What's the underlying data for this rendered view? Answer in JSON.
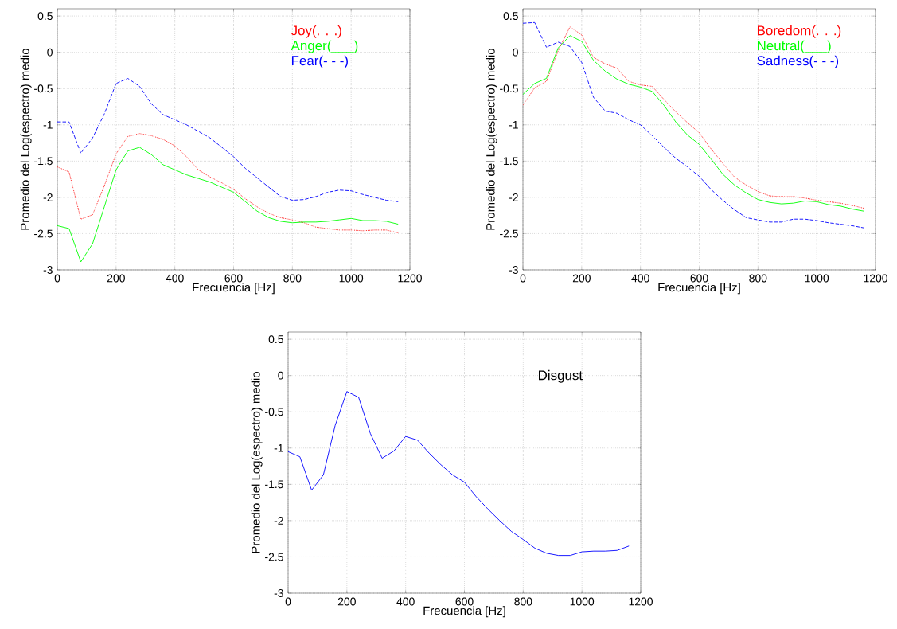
{
  "chart_data": [
    {
      "type": "line",
      "xlabel": "Frecuencia [Hz]",
      "ylabel": "Promedio del Log(espectro) medio",
      "grid": true,
      "legend": "top right",
      "x": [
        0,
        40,
        80,
        120,
        160,
        200,
        240,
        280,
        320,
        360,
        400,
        440,
        480,
        520,
        560,
        600,
        640,
        680,
        720,
        760,
        800,
        840,
        880,
        920,
        960,
        1000,
        1040,
        1080,
        1120,
        1160
      ],
      "xlim": [
        0,
        1200
      ],
      "xticks": [
        0,
        200,
        400,
        600,
        800,
        1000,
        1200
      ],
      "ylim": [
        -3,
        0.6
      ],
      "yticks": [
        -3,
        -2.5,
        -2,
        -1.5,
        -1,
        -0.5,
        0,
        0.5
      ],
      "series": [
        {
          "name": "Joy(. . .)",
          "color": "#ff0000",
          "line_style": "dotted",
          "values": [
            -1.58,
            -1.65,
            -2.3,
            -2.24,
            -1.84,
            -1.4,
            -1.16,
            -1.12,
            -1.15,
            -1.2,
            -1.29,
            -1.44,
            -1.62,
            -1.72,
            -1.8,
            -1.89,
            -2.02,
            -2.13,
            -2.22,
            -2.28,
            -2.31,
            -2.35,
            -2.41,
            -2.43,
            -2.45,
            -2.45,
            -2.46,
            -2.45,
            -2.45,
            -2.49
          ]
        },
        {
          "name": "Anger(___)",
          "color": "#00ff00",
          "line_style": "solid",
          "values": [
            -2.39,
            -2.43,
            -2.89,
            -2.64,
            -2.13,
            -1.62,
            -1.36,
            -1.31,
            -1.41,
            -1.55,
            -1.62,
            -1.69,
            -1.74,
            -1.79,
            -1.86,
            -1.93,
            -2.06,
            -2.19,
            -2.28,
            -2.33,
            -2.35,
            -2.34,
            -2.34,
            -2.33,
            -2.31,
            -2.29,
            -2.32,
            -2.32,
            -2.33,
            -2.37
          ]
        },
        {
          "name": "Fear(- - -)",
          "color": "#0000ff",
          "line_style": "dashed",
          "values": [
            -0.96,
            -0.96,
            -1.39,
            -1.18,
            -0.85,
            -0.43,
            -0.36,
            -0.47,
            -0.71,
            -0.86,
            -0.93,
            -1.0,
            -1.09,
            -1.18,
            -1.31,
            -1.44,
            -1.6,
            -1.73,
            -1.86,
            -1.99,
            -2.04,
            -2.03,
            -1.99,
            -1.93,
            -1.9,
            -1.91,
            -1.96,
            -2.0,
            -2.04,
            -2.06
          ]
        }
      ]
    },
    {
      "type": "line",
      "xlabel": "Frecuencia [Hz]",
      "ylabel": "Promedio del Log(espectro) medio",
      "grid": true,
      "legend": "top right",
      "x": [
        0,
        40,
        80,
        120,
        160,
        200,
        240,
        280,
        320,
        360,
        400,
        440,
        480,
        520,
        560,
        600,
        640,
        680,
        720,
        760,
        800,
        840,
        880,
        920,
        960,
        1000,
        1040,
        1080,
        1120,
        1160
      ],
      "xlim": [
        0,
        1200
      ],
      "xticks": [
        0,
        200,
        400,
        600,
        800,
        1000,
        1200
      ],
      "ylim": [
        -3,
        0.6
      ],
      "yticks": [
        -3,
        -2.5,
        -2,
        -1.5,
        -1,
        -0.5,
        0,
        0.5
      ],
      "series": [
        {
          "name": "Boredom(. . .)",
          "color": "#ff0000",
          "line_style": "dotted",
          "values": [
            -0.73,
            -0.49,
            -0.4,
            0.02,
            0.35,
            0.24,
            -0.07,
            -0.16,
            -0.22,
            -0.4,
            -0.45,
            -0.47,
            -0.65,
            -0.82,
            -0.97,
            -1.11,
            -1.33,
            -1.53,
            -1.72,
            -1.83,
            -1.92,
            -1.98,
            -1.99,
            -1.99,
            -2.01,
            -2.04,
            -2.06,
            -2.08,
            -2.11,
            -2.15
          ]
        },
        {
          "name": "Neutral(___)",
          "color": "#00ff00",
          "line_style": "solid",
          "values": [
            -0.58,
            -0.43,
            -0.36,
            0.06,
            0.23,
            0.15,
            -0.11,
            -0.26,
            -0.37,
            -0.44,
            -0.48,
            -0.54,
            -0.73,
            -0.96,
            -1.14,
            -1.27,
            -1.47,
            -1.68,
            -1.83,
            -1.94,
            -2.03,
            -2.07,
            -2.09,
            -2.08,
            -2.05,
            -2.06,
            -2.1,
            -2.12,
            -2.16,
            -2.19
          ]
        },
        {
          "name": "Sadness(- - -)",
          "color": "#0000ff",
          "line_style": "dashed",
          "values": [
            0.4,
            0.41,
            0.07,
            0.14,
            0.08,
            -0.14,
            -0.62,
            -0.81,
            -0.84,
            -0.93,
            -1.0,
            -1.15,
            -1.31,
            -1.46,
            -1.58,
            -1.71,
            -1.89,
            -2.04,
            -2.17,
            -2.28,
            -2.31,
            -2.34,
            -2.34,
            -2.3,
            -2.3,
            -2.32,
            -2.35,
            -2.37,
            -2.39,
            -2.42
          ]
        }
      ]
    },
    {
      "type": "line",
      "xlabel": "Frecuencia [Hz]",
      "ylabel": "Promedio del Log(espectro) medio",
      "grid": true,
      "annotations": [
        "Disgust"
      ],
      "x": [
        0,
        40,
        80,
        120,
        160,
        200,
        240,
        280,
        320,
        360,
        400,
        440,
        480,
        520,
        560,
        600,
        640,
        680,
        720,
        760,
        800,
        840,
        880,
        920,
        960,
        1000,
        1040,
        1080,
        1120,
        1160
      ],
      "xlim": [
        0,
        1200
      ],
      "xticks": [
        0,
        200,
        400,
        600,
        800,
        1000,
        1200
      ],
      "ylim": [
        -3,
        0.6
      ],
      "yticks": [
        -3,
        -2.5,
        -2,
        -1.5,
        -1,
        -0.5,
        0,
        0.5
      ],
      "series": [
        {
          "color": "#0000ff",
          "line_style": "solid",
          "values": [
            -1.05,
            -1.12,
            -1.58,
            -1.37,
            -0.69,
            -0.22,
            -0.3,
            -0.8,
            -1.14,
            -1.04,
            -0.84,
            -0.89,
            -1.07,
            -1.23,
            -1.37,
            -1.47,
            -1.67,
            -1.84,
            -2.0,
            -2.15,
            -2.26,
            -2.38,
            -2.45,
            -2.48,
            -2.48,
            -2.43,
            -2.42,
            -2.42,
            -2.41,
            -2.35
          ]
        }
      ]
    }
  ]
}
